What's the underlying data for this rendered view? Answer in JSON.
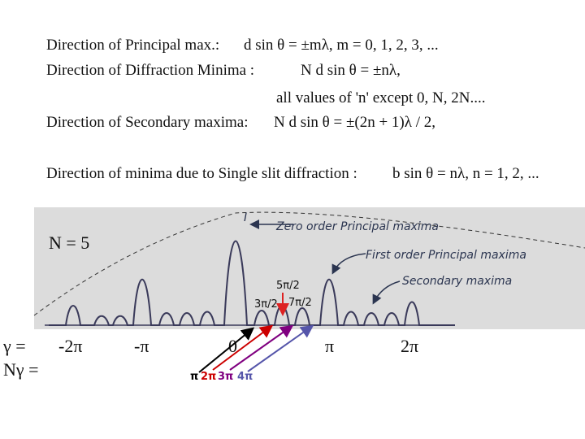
{
  "equations": [
    {
      "label": "Direction of Principal max.:",
      "formula": "d sin θ = ±mλ,  m = 0, 1, 2, 3, ..."
    },
    {
      "label": "Direction of Diffraction Minima :",
      "formula": "N d sin θ = ±nλ,"
    },
    {
      "label": "Direction of Secondary maxima:",
      "formula": "N d sin θ = ±(2n + 1)λ / 2,"
    },
    {
      "label": "Direction of minima due to Single slit diffraction :",
      "formula": "b sin θ = nλ,  n = 1, 2, ..."
    }
  ],
  "note": "all values of 'n' except 0, N, 2N....",
  "diagram": {
    "n_label": "N = 5",
    "intensity_label": "I",
    "annotations": [
      "Zero order Principal maxima",
      "First order Principal maxima",
      "Secondary maxima"
    ],
    "phase_labels": [
      "5π/2",
      "3π/2",
      "7π/2"
    ],
    "gamma_label": "γ =",
    "gamma_ticks": [
      "-2π",
      "-π",
      "0",
      "π",
      "2π"
    ],
    "n_gamma_label": "Nγ =",
    "n_gamma_ticks": [
      "π",
      "2π",
      "3π",
      "4π"
    ]
  }
}
